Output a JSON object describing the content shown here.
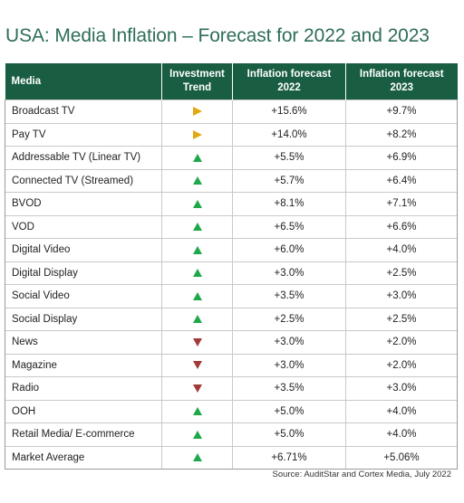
{
  "title": "USA: Media Inflation – Forecast for 2022 and 2023",
  "source": "Source: AuditStar and Cortex Media, July 2022",
  "colors": {
    "header_bg": "#195e43",
    "title": "#2e6e57",
    "up": "#1ea84a",
    "down": "#a23a3a",
    "flat": "#e2a711"
  },
  "chart_data": {
    "type": "table",
    "columns": [
      [
        "Media"
      ],
      [
        "Investment",
        "Trend"
      ],
      [
        "Inflation forecast",
        "2022"
      ],
      [
        "Inflation forecast",
        "2023"
      ]
    ],
    "rows": [
      {
        "media": "Broadcast TV",
        "trend": "right",
        "f2022": "+15.6%",
        "f2023": "+9.7%"
      },
      {
        "media": "Pay TV",
        "trend": "right",
        "f2022": "+14.0%",
        "f2023": "+8.2%"
      },
      {
        "media": "Addressable TV (Linear TV)",
        "trend": "up",
        "f2022": "+5.5%",
        "f2023": "+6.9%"
      },
      {
        "media": "Connected TV (Streamed)",
        "trend": "up",
        "f2022": "+5.7%",
        "f2023": "+6.4%"
      },
      {
        "media": "BVOD",
        "trend": "up",
        "f2022": "+8.1%",
        "f2023": "+7.1%"
      },
      {
        "media": "VOD",
        "trend": "up",
        "f2022": "+6.5%",
        "f2023": "+6.6%"
      },
      {
        "media": "Digital Video",
        "trend": "up",
        "f2022": "+6.0%",
        "f2023": "+4.0%"
      },
      {
        "media": "Digital Display",
        "trend": "up",
        "f2022": "+3.0%",
        "f2023": "+2.5%"
      },
      {
        "media": "Social Video",
        "trend": "up",
        "f2022": "+3.5%",
        "f2023": "+3.0%"
      },
      {
        "media": "Social Display",
        "trend": "up",
        "f2022": "+2.5%",
        "f2023": "+2.5%"
      },
      {
        "media": "News",
        "trend": "down",
        "f2022": "+3.0%",
        "f2023": "+2.0%"
      },
      {
        "media": "Magazine",
        "trend": "down",
        "f2022": "+3.0%",
        "f2023": "+2.0%"
      },
      {
        "media": "Radio",
        "trend": "down",
        "f2022": "+3.5%",
        "f2023": "+3.0%"
      },
      {
        "media": "OOH",
        "trend": "up",
        "f2022": "+5.0%",
        "f2023": "+4.0%"
      },
      {
        "media": "Retail Media/ E-commerce",
        "trend": "up",
        "f2022": "+5.0%",
        "f2023": "+4.0%"
      },
      {
        "media": "Market Average",
        "trend": "up",
        "f2022": "+6.71%",
        "f2023": "+5.06%"
      }
    ]
  }
}
